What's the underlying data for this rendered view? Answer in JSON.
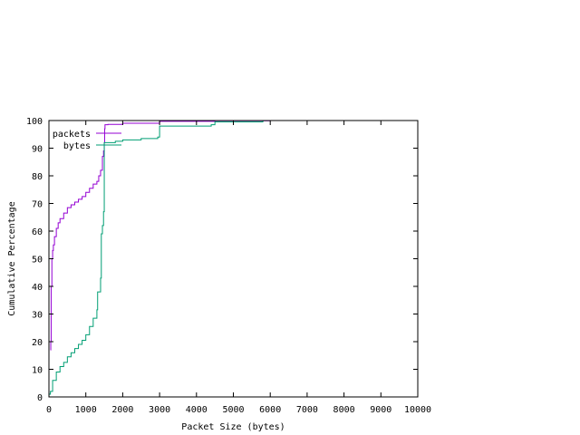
{
  "chart_data": {
    "type": "line",
    "xlabel": "Packet Size (bytes)",
    "ylabel": "Cumulative Percentage",
    "xlim": [
      0,
      10000
    ],
    "ylim": [
      0,
      100
    ],
    "xticks": [
      0,
      1000,
      2000,
      3000,
      4000,
      5000,
      6000,
      7000,
      8000,
      9000,
      10000
    ],
    "yticks": [
      0,
      10,
      20,
      30,
      40,
      50,
      60,
      70,
      80,
      90,
      100
    ],
    "grid": false,
    "legend_position": "top-left",
    "step": true,
    "series": [
      {
        "name": "packets",
        "color": "#9400d3",
        "points": [
          [
            40,
            17
          ],
          [
            50,
            20
          ],
          [
            60,
            40
          ],
          [
            80,
            50
          ],
          [
            100,
            53
          ],
          [
            120,
            55
          ],
          [
            150,
            58
          ],
          [
            200,
            61
          ],
          [
            250,
            63
          ],
          [
            300,
            64.5
          ],
          [
            400,
            66.5
          ],
          [
            500,
            68.5
          ],
          [
            600,
            69.5
          ],
          [
            700,
            70.5
          ],
          [
            800,
            71.5
          ],
          [
            900,
            72.5
          ],
          [
            1000,
            74
          ],
          [
            1100,
            75.5
          ],
          [
            1200,
            77
          ],
          [
            1300,
            78
          ],
          [
            1350,
            80
          ],
          [
            1400,
            82
          ],
          [
            1450,
            87
          ],
          [
            1480,
            89
          ],
          [
            1500,
            92
          ],
          [
            1510,
            97
          ],
          [
            1520,
            98.5
          ],
          [
            1600,
            98.6
          ],
          [
            2000,
            99
          ],
          [
            2900,
            99
          ],
          [
            3000,
            99.7
          ],
          [
            4400,
            99.7
          ],
          [
            4500,
            99.9
          ],
          [
            6000,
            100
          ]
        ]
      },
      {
        "name": "bytes",
        "color": "#009e73",
        "points": [
          [
            0,
            1
          ],
          [
            40,
            2
          ],
          [
            100,
            6
          ],
          [
            200,
            9
          ],
          [
            300,
            11
          ],
          [
            400,
            12.5
          ],
          [
            500,
            14.5
          ],
          [
            600,
            16
          ],
          [
            700,
            17.5
          ],
          [
            800,
            19
          ],
          [
            900,
            20.5
          ],
          [
            1000,
            22.5
          ],
          [
            1100,
            25.5
          ],
          [
            1200,
            28.5
          ],
          [
            1300,
            31.5
          ],
          [
            1320,
            38
          ],
          [
            1400,
            43
          ],
          [
            1420,
            59
          ],
          [
            1450,
            62
          ],
          [
            1480,
            67
          ],
          [
            1500,
            92
          ],
          [
            1600,
            92
          ],
          [
            1800,
            92.5
          ],
          [
            2000,
            93
          ],
          [
            2500,
            93.5
          ],
          [
            2950,
            94
          ],
          [
            3000,
            98
          ],
          [
            4400,
            98.5
          ],
          [
            4500,
            99.5
          ],
          [
            5800,
            100
          ]
        ]
      }
    ]
  }
}
